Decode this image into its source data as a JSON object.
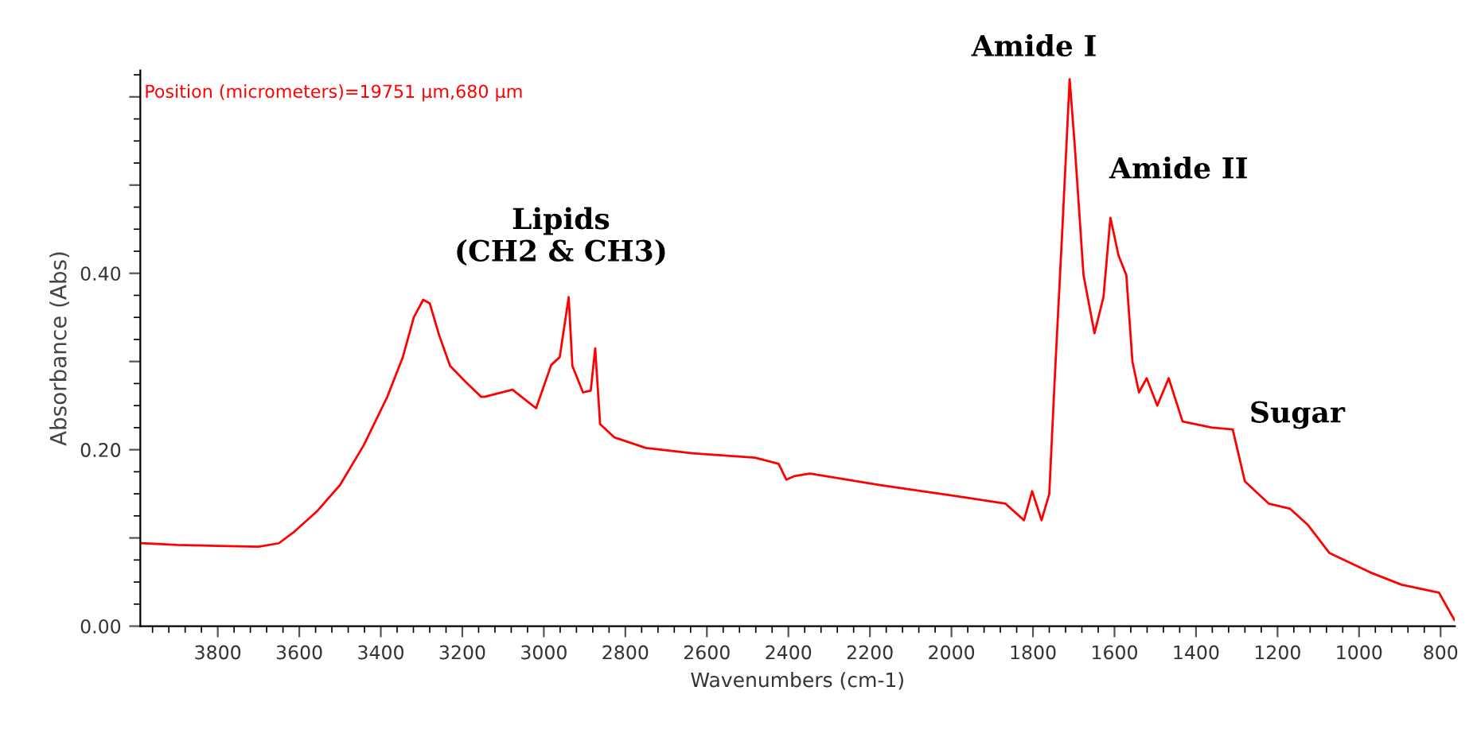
{
  "chart_data": {
    "type": "line",
    "xlabel": "Wavenumbers (cm-1)",
    "ylabel": "Absorbance (Abs)",
    "xlim": [
      3990,
      765
    ],
    "ylim": [
      0,
      0.63
    ],
    "xticks": [
      3800,
      3600,
      3400,
      3200,
      3000,
      2800,
      2600,
      2400,
      2200,
      2000,
      1800,
      1600,
      1400,
      1200,
      1000,
      800
    ],
    "yticks": [
      {
        "value": 0,
        "label": "0.00"
      },
      {
        "value": 0.1,
        "label": null
      },
      {
        "value": 0.2,
        "label": "0.20"
      },
      {
        "value": 0.3,
        "label": null
      },
      {
        "value": 0.4,
        "label": "0.40"
      },
      {
        "value": 0.5,
        "label": null
      },
      {
        "value": 0.6,
        "label": null
      }
    ],
    "grid": false,
    "legend": false,
    "marker": "none",
    "line_style": "solid",
    "annotations": [
      "Lipids\n(CH2 & CH3)",
      "Amide I",
      "Amide II",
      "Sugar",
      "Position (micrometers)=19751 µm,680 µm"
    ],
    "series": [
      {
        "color": "#ff0000",
        "x": [
          3987,
          3900,
          3800,
          3700,
          3650,
          3615,
          3557,
          3500,
          3442,
          3384,
          3346,
          3319,
          3296,
          3280,
          3257,
          3230,
          3192,
          3154,
          3146,
          3077,
          3019,
          2982,
          2961,
          2939,
          2930,
          2904,
          2885,
          2874,
          2862,
          2827,
          2750,
          2635,
          2482,
          2424,
          2405,
          2386,
          2347,
          2175,
          1983,
          1868,
          1822,
          1802,
          1779,
          1760,
          1747,
          1729,
          1710,
          1698,
          1676,
          1649,
          1627,
          1610,
          1590,
          1571,
          1556,
          1540,
          1521,
          1495,
          1467,
          1433,
          1360,
          1310,
          1280,
          1222,
          1169,
          1126,
          1073,
          973,
          896,
          804,
          766
        ],
        "values": [
          0.094,
          0.092,
          0.091,
          0.09,
          0.094,
          0.106,
          0.13,
          0.16,
          0.205,
          0.26,
          0.305,
          0.35,
          0.37,
          0.366,
          0.33,
          0.295,
          0.277,
          0.26,
          0.26,
          0.268,
          0.247,
          0.296,
          0.305,
          0.373,
          0.295,
          0.265,
          0.267,
          0.315,
          0.229,
          0.214,
          0.202,
          0.196,
          0.191,
          0.184,
          0.166,
          0.17,
          0.173,
          0.16,
          0.147,
          0.139,
          0.12,
          0.153,
          0.12,
          0.15,
          0.277,
          0.44,
          0.62,
          0.548,
          0.398,
          0.332,
          0.373,
          0.463,
          0.42,
          0.398,
          0.3,
          0.265,
          0.281,
          0.25,
          0.281,
          0.232,
          0.225,
          0.223,
          0.164,
          0.139,
          0.133,
          0.115,
          0.083,
          0.061,
          0.047,
          0.038,
          0.007
        ]
      }
    ]
  }
}
